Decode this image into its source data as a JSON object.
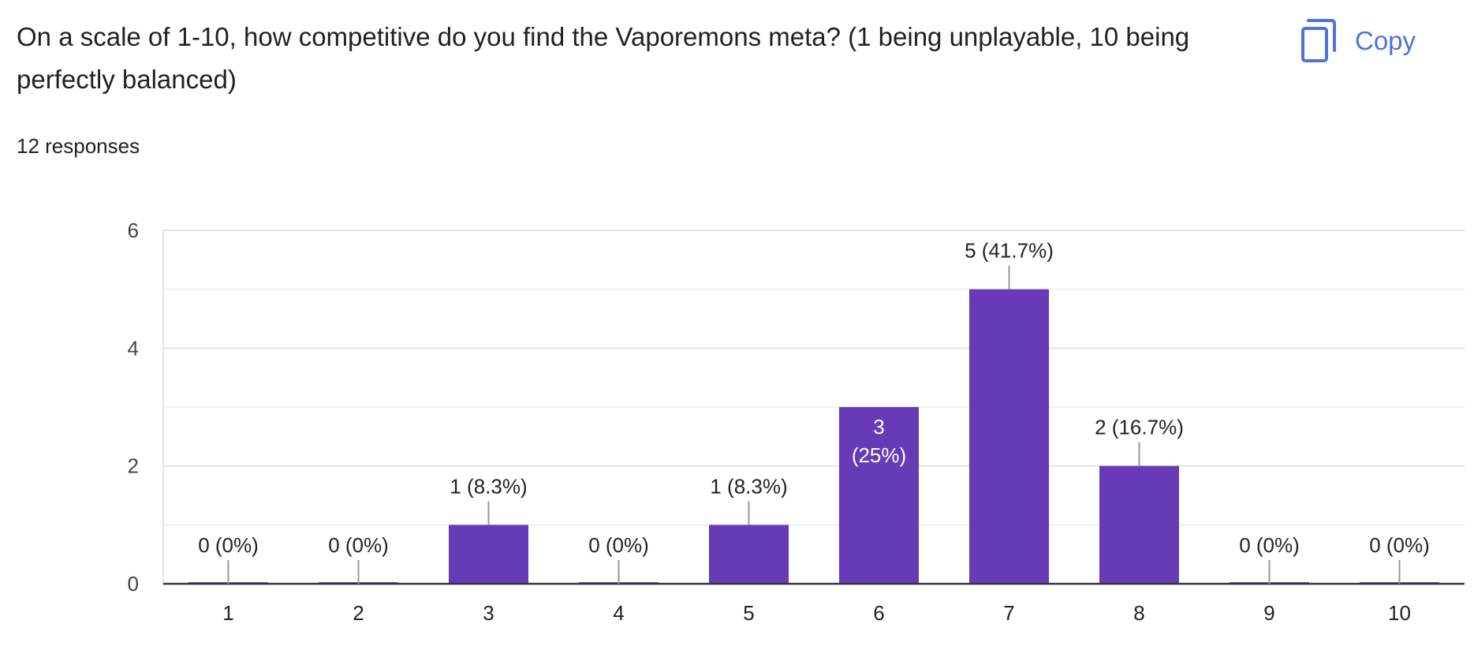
{
  "question": {
    "title": "On a scale of 1-10, how competitive do you find the Vaporemons meta? (1 being unplayable, 10 being perfectly balanced)",
    "responses": "12 responses"
  },
  "toolbar": {
    "copy_label": "Copy",
    "copy_icon": "copy-icon"
  },
  "colors": {
    "bar": "#673ab7",
    "accent": "#4f72e0",
    "grid": "#e6e6e6",
    "axis": "#333333",
    "text": "#202124"
  },
  "chart_data": {
    "type": "bar",
    "categories": [
      "1",
      "2",
      "3",
      "4",
      "5",
      "6",
      "7",
      "8",
      "9",
      "10"
    ],
    "values": [
      0,
      0,
      1,
      0,
      1,
      3,
      5,
      2,
      0,
      0
    ],
    "data_labels": [
      "0 (0%)",
      "0 (0%)",
      "1 (8.3%)",
      "0 (0%)",
      "1 (8.3%)",
      "3 (25%)",
      "5 (41.7%)",
      "2 (16.7%)",
      "0 (0%)",
      "0 (0%)"
    ],
    "title": "",
    "xlabel": "",
    "ylabel": "",
    "ylim": [
      0,
      6
    ],
    "yticks": [
      0,
      2,
      4,
      6
    ],
    "grid": true,
    "legend": "none"
  }
}
